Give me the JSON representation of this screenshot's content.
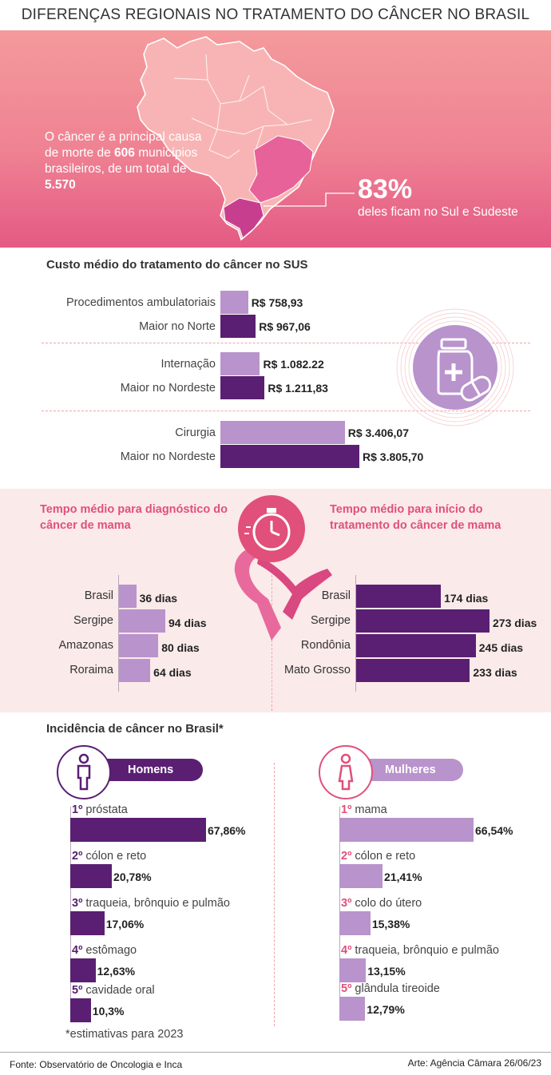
{
  "title": "DIFERENÇAS REGIONAIS NO TRATAMENTO DO CÂNCER NO BRASIL",
  "hero": {
    "text_a": "O câncer é a principal causa de morte de ",
    "text_b": "606",
    "text_c": " municípios brasileiros, de um total de ",
    "text_d": "5.570",
    "pct": "83%",
    "pct_caption": "deles ficam no Sul e Sudeste"
  },
  "colors": {
    "light_purple": "#b993cc",
    "dark_purple": "#5a1f72",
    "pink_accent": "#e0507a",
    "hero_top": "#f49a9c",
    "hero_bottom": "#e45a84"
  },
  "chart_data": [
    {
      "type": "bar",
      "title": "Custo médio do tratamento do câncer no SUS",
      "categories": [
        "Procedimentos ambulatoriais",
        "Maior no Norte",
        "Internação",
        "Maior no Nordeste",
        "Cirurgia",
        "Maior no Nordeste"
      ],
      "values": [
        758.93,
        967.06,
        1082.22,
        1211.83,
        3406.07,
        3805.7
      ],
      "value_labels": [
        "R$ 758,93",
        "R$ 967,06",
        "R$ 1.082.22",
        "R$ 1.211,83",
        "R$ 3.406,07",
        "R$ 3.805,70"
      ],
      "orientation": "horizontal"
    },
    {
      "type": "bar",
      "title": "Tempo médio para diagnóstico do câncer de mama",
      "categories": [
        "Brasil",
        "Sergipe",
        "Amazonas",
        "Roraima"
      ],
      "values": [
        36,
        94,
        80,
        64
      ],
      "value_labels": [
        "36 dias",
        "94 dias",
        "80 dias",
        "64 dias"
      ],
      "orientation": "horizontal"
    },
    {
      "type": "bar",
      "title": "Tempo médio para início do tratamento do câncer de mama",
      "categories": [
        "Brasil",
        "Sergipe",
        "Rondônia",
        "Mato Grosso"
      ],
      "values": [
        174,
        273,
        245,
        233
      ],
      "value_labels": [
        "174 dias",
        "273 dias",
        "245 dias",
        "233 dias"
      ],
      "orientation": "horizontal"
    },
    {
      "type": "bar",
      "title": "Incidência de câncer no Brasil*",
      "subtitle": "Homens",
      "ranks": [
        "1º",
        "2º",
        "3º",
        "4º",
        "5º"
      ],
      "categories": [
        "próstata",
        "cólon e reto",
        "traqueia, brônquio e pulmão",
        "estômago",
        "cavidade oral"
      ],
      "values": [
        67.86,
        20.78,
        17.06,
        12.63,
        10.3
      ],
      "value_labels": [
        "67,86%",
        "20,78%",
        "17,06%",
        "12,63%",
        "10,3%"
      ],
      "orientation": "horizontal"
    },
    {
      "type": "bar",
      "subtitle": "Mulheres",
      "ranks": [
        "1º",
        "2º",
        "3º",
        "4º",
        "5º"
      ],
      "categories": [
        "mama",
        "cólon e reto",
        "colo do útero",
        "traqueia, brônquio e pulmão",
        "glândula tireoide"
      ],
      "values": [
        66.54,
        21.41,
        15.38,
        13.15,
        12.79
      ],
      "value_labels": [
        "66,54%",
        "21,41%",
        "15,38%",
        "13,15%",
        "12,79%"
      ],
      "orientation": "horizontal"
    }
  ],
  "note": "*estimativas para 2023",
  "footer": {
    "source": "Fonte: Observatório de Oncologia e Inca",
    "credit": "Arte: Agência Câmara 26/06/23"
  },
  "icons": [
    "medicine-bottle-icon",
    "stopwatch-icon",
    "pink-ribbon-icon",
    "man-icon",
    "woman-icon",
    "brazil-map"
  ]
}
